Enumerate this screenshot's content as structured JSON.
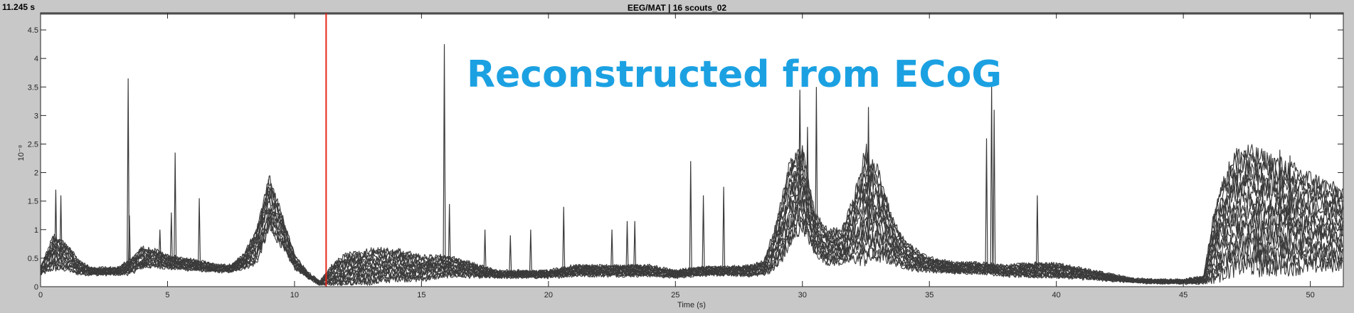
{
  "header": {
    "time_readout": "11.245 s",
    "title": "EEG/MAT | 16 scouts_02"
  },
  "colors": {
    "window_bg": "#c8c8c8",
    "plot_bg": "#ffffff",
    "trace": "#3a3a3a",
    "cursor": "#e8261a",
    "overlay_text": "#1ba1e2"
  },
  "chart_data": {
    "type": "line",
    "title": "EEG/MAT | 16 scouts_02",
    "annotation": "Reconstructed from ECoG",
    "xlabel": "Time (s)",
    "ylabel_exponent": "10⁻⁸",
    "xlim": [
      0,
      51.3
    ],
    "ylim": [
      0,
      4.8
    ],
    "x_ticks": [
      0,
      5,
      10,
      15,
      20,
      25,
      30,
      35,
      40,
      45,
      50
    ],
    "y_ticks": [
      0,
      0.5,
      1,
      1.5,
      2,
      2.5,
      3,
      3.5,
      4,
      4.5
    ],
    "y_tick_labels": [
      "0",
      "0.5",
      "1",
      "1.5",
      "2",
      "2.5",
      "3",
      "3.5",
      "4",
      "4.5"
    ],
    "cursor_x": 11.245,
    "grid": false,
    "n_series": 16,
    "envelope": {
      "x": [
        0,
        0.5,
        1,
        1.5,
        2,
        2.5,
        3,
        3.5,
        4,
        4.5,
        5,
        6,
        7,
        7.5,
        8,
        8.5,
        9,
        9.5,
        10,
        10.5,
        11,
        11.5,
        12,
        13,
        14,
        15,
        16,
        17,
        18,
        19,
        20,
        21,
        22,
        23,
        24,
        25,
        26,
        27,
        28,
        28.5,
        29,
        29.5,
        30,
        30.5,
        31,
        31.5,
        32,
        32.5,
        33,
        33.5,
        34,
        34.5,
        35,
        36,
        37,
        38,
        39,
        40,
        41,
        42,
        43,
        44,
        45,
        45.8,
        46.3,
        47,
        47.5,
        48,
        49,
        50,
        51,
        51.3
      ],
      "base": [
        0.25,
        0.5,
        0.45,
        0.3,
        0.25,
        0.25,
        0.25,
        0.3,
        0.45,
        0.45,
        0.4,
        0.35,
        0.3,
        0.3,
        0.4,
        0.6,
        1.3,
        0.9,
        0.4,
        0.2,
        0.05,
        0.15,
        0.2,
        0.25,
        0.3,
        0.25,
        0.3,
        0.25,
        0.2,
        0.2,
        0.2,
        0.25,
        0.25,
        0.25,
        0.25,
        0.2,
        0.25,
        0.25,
        0.25,
        0.3,
        0.6,
        1.2,
        1.5,
        0.8,
        0.6,
        0.6,
        0.8,
        1.1,
        1.0,
        0.7,
        0.5,
        0.4,
        0.35,
        0.3,
        0.3,
        0.25,
        0.25,
        0.25,
        0.2,
        0.15,
        0.1,
        0.08,
        0.08,
        0.1,
        0.6,
        0.95,
        1.0,
        0.95,
        0.9,
        0.85,
        0.8,
        0.8
      ],
      "spread": [
        0.1,
        0.5,
        0.4,
        0.2,
        0.1,
        0.1,
        0.1,
        0.2,
        0.3,
        0.25,
        0.2,
        0.15,
        0.1,
        0.1,
        0.2,
        0.5,
        0.8,
        0.5,
        0.2,
        0.08,
        0.05,
        0.3,
        0.45,
        0.5,
        0.45,
        0.35,
        0.3,
        0.2,
        0.1,
        0.1,
        0.1,
        0.15,
        0.15,
        0.15,
        0.15,
        0.1,
        0.12,
        0.12,
        0.15,
        0.2,
        0.7,
        1.3,
        1.2,
        0.6,
        0.5,
        0.5,
        0.9,
        1.7,
        1.3,
        0.7,
        0.4,
        0.3,
        0.2,
        0.15,
        0.15,
        0.15,
        0.2,
        0.2,
        0.15,
        0.1,
        0.05,
        0.05,
        0.05,
        0.1,
        1.2,
        1.75,
        1.8,
        1.75,
        1.6,
        1.4,
        1.2,
        1.1
      ]
    },
    "spikes": [
      {
        "x": 0.6,
        "y": 1.7
      },
      {
        "x": 0.8,
        "y": 1.6
      },
      {
        "x": 3.45,
        "y": 3.65
      },
      {
        "x": 3.5,
        "y": 1.25
      },
      {
        "x": 4.7,
        "y": 1.0
      },
      {
        "x": 5.15,
        "y": 1.3
      },
      {
        "x": 5.3,
        "y": 2.35
      },
      {
        "x": 6.25,
        "y": 1.55
      },
      {
        "x": 15.9,
        "y": 4.25
      },
      {
        "x": 16.1,
        "y": 1.45
      },
      {
        "x": 17.5,
        "y": 1.0
      },
      {
        "x": 18.5,
        "y": 0.9
      },
      {
        "x": 19.3,
        "y": 1.0
      },
      {
        "x": 20.6,
        "y": 1.4
      },
      {
        "x": 22.5,
        "y": 1.0
      },
      {
        "x": 23.1,
        "y": 1.15
      },
      {
        "x": 23.4,
        "y": 1.15
      },
      {
        "x": 25.6,
        "y": 2.2
      },
      {
        "x": 26.1,
        "y": 1.6
      },
      {
        "x": 26.9,
        "y": 1.75
      },
      {
        "x": 29.9,
        "y": 3.45
      },
      {
        "x": 30.2,
        "y": 2.8
      },
      {
        "x": 30.55,
        "y": 3.5
      },
      {
        "x": 32.6,
        "y": 3.15
      },
      {
        "x": 37.25,
        "y": 2.6
      },
      {
        "x": 37.45,
        "y": 3.55
      },
      {
        "x": 37.55,
        "y": 3.1
      },
      {
        "x": 39.25,
        "y": 1.6
      },
      {
        "x": 48.8,
        "y": 2.4
      },
      {
        "x": 49.2,
        "y": 2.3
      }
    ]
  }
}
